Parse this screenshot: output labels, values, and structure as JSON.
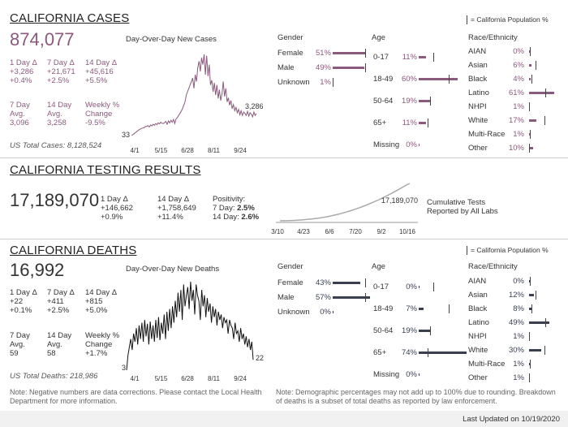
{
  "cases": {
    "title": "CALIFORNIA CASES",
    "total": "874,077",
    "chart_title": "Day-Over-Day New Cases",
    "day1_label": "1 Day Δ",
    "day1_abs": "+3,286",
    "day1_pct": "+0.4%",
    "day7_label": "7 Day Δ",
    "day7_abs": "+21,671",
    "day7_pct": "+2.5%",
    "day14_label": "14 Day Δ",
    "day14_abs": "+45,616",
    "day14_pct": "+5.5%",
    "avg7_label1": "7 Day",
    "avg7_label2": "Avg.",
    "avg7_value": "3,096",
    "avg14_label1": "14 Day",
    "avg14_label2": "Avg.",
    "avg14_value": "3,258",
    "weekly_label1": "Weekly %",
    "weekly_label2": "Change",
    "weekly_value": "-9.5%",
    "us_total": "US Total Cases: 8,128,524",
    "start_label": "33",
    "end_label": "3,286",
    "population_legend": "= California Population %"
  },
  "testing": {
    "title": "CALIFORNIA TESTING RESULTS",
    "total": "17,189,070",
    "day1_label": "1 Day Δ",
    "day1_abs": "+146,662",
    "day1_pct": "+0.9%",
    "day14_label": "14 Day Δ",
    "day14_abs": "+1,758,649",
    "day14_pct": "+11.4%",
    "positivity_label": "Positivity:",
    "pos7_label": "7 Day: ",
    "pos7_value": "2.5%",
    "pos14_label": "14 Day: ",
    "pos14_value": "2.6%",
    "chart_end_label": "17,189,070",
    "cumulative_line1": "Cumulative Tests",
    "cumulative_line2": "Reported by All Labs"
  },
  "deaths": {
    "title": "CALIFORNIA DEATHS",
    "total": "16,992",
    "chart_title": "Day-Over-Day New Deaths",
    "day1_label": "1 Day Δ",
    "day1_abs": "+22",
    "day1_pct": "+0.1%",
    "day7_label": "7 Day Δ",
    "day7_abs": "+411",
    "day7_pct": "+2.5%",
    "day14_label": "14 Day Δ",
    "day14_abs": "+815",
    "day14_pct": "+5.0%",
    "avg7_label1": "7 Day",
    "avg7_label2": "Avg.",
    "avg7_value": "59",
    "avg14_label1": "14 Day",
    "avg14_label2": "Avg.",
    "avg14_value": "58",
    "weekly_label1": "Weekly %",
    "weekly_label2": "Change",
    "weekly_value": "+1.7%",
    "us_total": "US Total Deaths: 218,986",
    "start_label": "3",
    "end_label": "22",
    "population_legend": "= California Population %"
  },
  "demo_headers": {
    "gender": "Gender",
    "age": "Age",
    "race": "Race/Ethnicity"
  },
  "colors": {
    "cases": "#8a5a7c",
    "deaths": "#3a3f4f",
    "testing": "#aaaaaa"
  },
  "notes": {
    "left": "Note: Negative numbers are data corrections. Please contact the Local Health Department for more information.",
    "right": "Note: Demographic percentages may not add up to 100% due to rounding. Breakdown of deaths is a subset of total deaths as reported by law enforcement."
  },
  "footer": {
    "last_updated": "Last Updated on 10/19/2020"
  },
  "chart_data": [
    {
      "type": "line",
      "title": "Day-Over-Day New Cases",
      "x_ticks": [
        "4/1",
        "5/15",
        "6/28",
        "8/11",
        "9/24"
      ],
      "start_value": 33,
      "end_value": 3286,
      "values": [
        33,
        150,
        300,
        450,
        600,
        750,
        900,
        1000,
        1100,
        1150,
        1200,
        1350,
        1400,
        1500,
        1300,
        1600,
        1450,
        1700,
        1550,
        1800,
        1650,
        1900,
        1750,
        2000,
        1850,
        1800,
        1950,
        2100,
        1700,
        2200,
        1900,
        2300,
        2000,
        2400,
        1800,
        2500,
        2700,
        3000,
        3300,
        3600,
        4000,
        4500,
        5000,
        6000,
        6500,
        7000,
        7500,
        8000,
        8500,
        7000,
        9000,
        8000,
        10000,
        11000,
        9500,
        11500,
        10500,
        12000,
        9000,
        11800,
        8800,
        10500,
        7500,
        8200,
        6500,
        7800,
        6000,
        7500,
        5500,
        6800,
        5200,
        6200,
        8000,
        5800,
        7000,
        5000,
        5600,
        4500,
        5200,
        4000,
        4600,
        3700,
        4200,
        3400,
        3900,
        3100,
        3700,
        3000,
        3500,
        3300,
        3000,
        3600,
        2900,
        3400,
        3200,
        2800,
        3500,
        3000,
        3286
      ]
    },
    {
      "type": "line",
      "x_ticks": [
        "3/10",
        "4/23",
        "6/6",
        "7/20",
        "9/2",
        "10/16"
      ],
      "end_value": 17189070,
      "values": [
        0,
        0.02,
        0.05,
        0.09,
        0.14,
        0.2,
        0.28,
        0.37,
        0.48,
        0.6,
        0.73,
        0.86,
        1.0,
        1.16,
        1.35,
        1.56,
        1.8,
        2.06,
        2.34,
        2.64,
        2.96,
        3.3,
        3.66,
        4.04,
        4.44,
        4.86,
        5.3,
        5.76,
        6.24,
        6.74,
        7.26,
        7.8,
        8.36,
        8.94,
        9.54,
        10.16,
        10.8,
        11.46,
        12.14,
        12.84,
        13.56,
        14.3,
        15.06,
        15.84,
        16.6,
        17.19
      ]
    },
    {
      "type": "line",
      "title": "Day-Over-Day New Deaths",
      "x_ticks": [
        "4/1",
        "5/15",
        "6/28",
        "8/11",
        "9/24"
      ],
      "start_value": 3,
      "end_value": 22,
      "values": [
        3,
        30,
        45,
        60,
        40,
        70,
        55,
        80,
        50,
        85,
        60,
        90,
        55,
        95,
        65,
        88,
        50,
        92,
        60,
        85,
        55,
        95,
        62,
        100,
        58,
        90,
        70,
        105,
        60,
        110,
        75,
        115,
        80,
        120,
        90,
        130,
        100,
        145,
        110,
        150,
        95,
        160,
        120,
        140,
        155,
        115,
        165,
        130,
        150,
        105,
        160,
        140,
        130,
        95,
        150,
        120,
        140,
        100,
        135,
        110,
        125,
        90,
        120,
        100,
        115,
        85,
        110,
        95,
        105,
        80,
        100,
        90,
        95,
        70,
        95,
        85,
        80,
        60,
        90,
        70,
        75,
        55,
        80,
        60,
        70,
        50,
        65,
        45,
        60,
        40,
        55,
        22
      ]
    }
  ],
  "demographics": {
    "cases": {
      "gender": [
        {
          "label": "Female",
          "pct": "51%",
          "value": 51,
          "pop": 50
        },
        {
          "label": "Male",
          "pct": "49%",
          "value": 49,
          "pop": 50
        },
        {
          "label": "Unknown",
          "pct": "1%",
          "value": 1,
          "pop": 0
        }
      ],
      "age": [
        {
          "label": "0-17",
          "pct": "11%",
          "value": 11,
          "pop": 23
        },
        {
          "label": "18-49",
          "pct": "60%",
          "value": 60,
          "pop": 46
        },
        {
          "label": "50-64",
          "pct": "19%",
          "value": 19,
          "pop": 18
        },
        {
          "label": "65+",
          "pct": "11%",
          "value": 11,
          "pop": 14
        },
        {
          "label": "Missing",
          "pct": "0%",
          "value": 0,
          "pop": null
        }
      ],
      "race": [
        {
          "label": "AIAN",
          "pct": "0%",
          "value": 0,
          "pop": 1
        },
        {
          "label": "Asian",
          "pct": "6%",
          "value": 6,
          "pop": 15
        },
        {
          "label": "Black",
          "pct": "4%",
          "value": 4,
          "pop": 6
        },
        {
          "label": "Latino",
          "pct": "61%",
          "value": 61,
          "pop": 39
        },
        {
          "label": "NHPI",
          "pct": "1%",
          "value": 1,
          "pop": 0
        },
        {
          "label": "White",
          "pct": "17%",
          "value": 17,
          "pop": 37
        },
        {
          "label": "Multi-Race",
          "pct": "1%",
          "value": 1,
          "pop": 2
        },
        {
          "label": "Other",
          "pct": "10%",
          "value": 10,
          "pop": 0
        }
      ]
    },
    "deaths": {
      "gender": [
        {
          "label": "Female",
          "pct": "43%",
          "value": 43,
          "pop": 50
        },
        {
          "label": "Male",
          "pct": "57%",
          "value": 57,
          "pop": 50
        },
        {
          "label": "Unknown",
          "pct": "0%",
          "value": 0,
          "pop": null
        }
      ],
      "age": [
        {
          "label": "0-17",
          "pct": "0%",
          "value": 0,
          "pop": 23
        },
        {
          "label": "18-49",
          "pct": "7%",
          "value": 7,
          "pop": 46
        },
        {
          "label": "50-64",
          "pct": "19%",
          "value": 19,
          "pop": 18
        },
        {
          "label": "65+",
          "pct": "74%",
          "value": 74,
          "pop": 14
        },
        {
          "label": "Missing",
          "pct": "0%",
          "value": 0,
          "pop": null
        }
      ],
      "race": [
        {
          "label": "AIAN",
          "pct": "0%",
          "value": 0,
          "pop": 1
        },
        {
          "label": "Asian",
          "pct": "12%",
          "value": 12,
          "pop": 15
        },
        {
          "label": "Black",
          "pct": "8%",
          "value": 8,
          "pop": 6
        },
        {
          "label": "Latino",
          "pct": "49%",
          "value": 49,
          "pop": 39
        },
        {
          "label": "NHPI",
          "pct": "1%",
          "value": 1,
          "pop": 0
        },
        {
          "label": "White",
          "pct": "30%",
          "value": 30,
          "pop": 37
        },
        {
          "label": "Multi-Race",
          "pct": "1%",
          "value": 1,
          "pop": 2
        },
        {
          "label": "Other",
          "pct": "1%",
          "value": 1,
          "pop": 0
        }
      ]
    }
  }
}
